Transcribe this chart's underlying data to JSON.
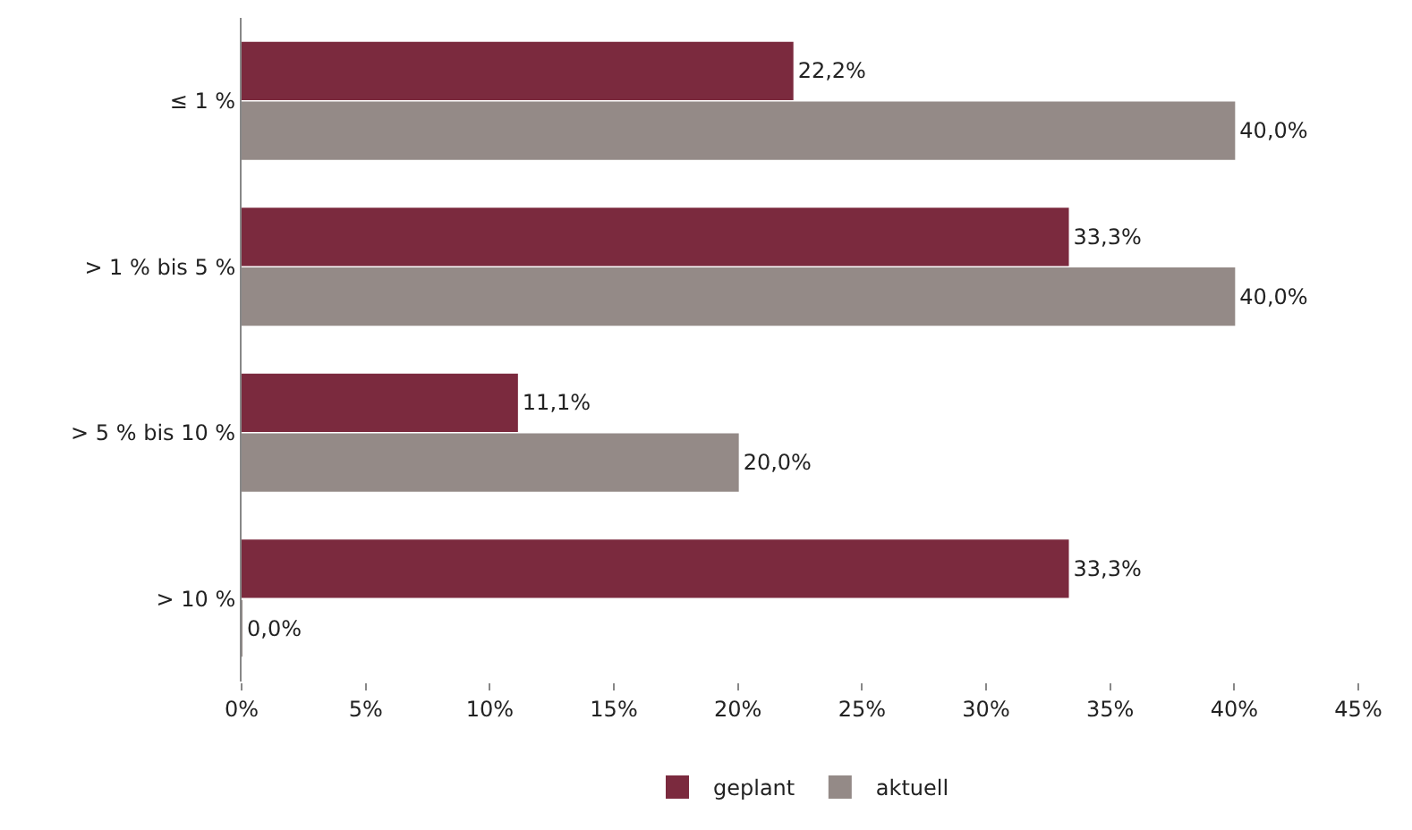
{
  "chart_data": {
    "type": "bar",
    "orientation": "horizontal",
    "categories": [
      "≤ 1 %",
      "> 1 % bis 5 %",
      "> 5 % bis 10 %",
      "> 10 %"
    ],
    "series": [
      {
        "name": "geplant",
        "color": "#7b2a3e",
        "values": [
          22.2,
          33.3,
          11.1,
          33.3
        ],
        "value_labels": [
          "22,2%",
          "33,3%",
          "11,1%",
          "33,3%"
        ]
      },
      {
        "name": "aktuell",
        "color": "#948a87",
        "values": [
          40.0,
          40.0,
          20.0,
          0.0
        ],
        "value_labels": [
          "40,0%",
          "40,0%",
          "20,0%",
          "0,0%"
        ]
      }
    ],
    "xlim": [
      0,
      45
    ],
    "xticks": [
      {
        "value": 0,
        "label": "0%"
      },
      {
        "value": 5,
        "label": "5%"
      },
      {
        "value": 10,
        "label": "10%"
      },
      {
        "value": 15,
        "label": "15%"
      },
      {
        "value": 20,
        "label": "20%"
      },
      {
        "value": 25,
        "label": "25%"
      },
      {
        "value": 30,
        "label": "30%"
      },
      {
        "value": 35,
        "label": "35%"
      },
      {
        "value": 40,
        "label": "40%"
      },
      {
        "value": 45,
        "label": "45%"
      }
    ],
    "legend": "bottom"
  }
}
